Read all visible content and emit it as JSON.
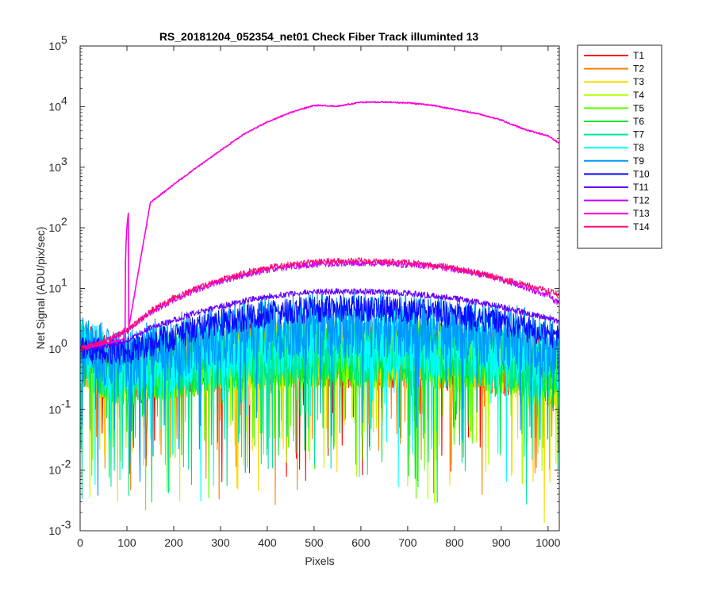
{
  "chart_data": {
    "type": "line",
    "title": "RS_20181204_052354_net01   Check Fiber     Track illuminted 13",
    "xlabel": "Pixels",
    "ylabel": "Net Signal (ADU/pix/sec)",
    "xlim": [
      0,
      1024
    ],
    "ylim": [
      0.001,
      100000
    ],
    "yscale": "log",
    "grid": false,
    "legend_position": "outside-right",
    "xticks": [
      0,
      100,
      200,
      300,
      400,
      500,
      600,
      700,
      800,
      900,
      1000
    ],
    "xtick_labels": [
      "0",
      "100",
      "200",
      "300",
      "400",
      "500",
      "600",
      "700",
      "800",
      "900",
      "1000"
    ],
    "yticks": [
      0.001,
      0.01,
      0.1,
      1,
      10,
      100,
      1000,
      10000,
      100000
    ],
    "ytick_base": "10",
    "ytick_exponents": [
      "-3",
      "-2",
      "-1",
      "0",
      "1",
      "2",
      "3",
      "4",
      "5"
    ],
    "x": [
      0,
      50,
      100,
      150,
      200,
      250,
      300,
      350,
      400,
      450,
      500,
      550,
      600,
      650,
      700,
      750,
      800,
      850,
      900,
      950,
      1000,
      1024
    ],
    "series": [
      {
        "name": "T1",
        "color": "#ff0000",
        "values": [
          0.9,
          0.5,
          0.4,
          0.5,
          0.5,
          0.6,
          0.7,
          0.7,
          0.8,
          0.8,
          0.8,
          0.8,
          0.8,
          0.8,
          0.8,
          0.8,
          0.7,
          0.7,
          0.6,
          0.5,
          0.4,
          0.3
        ]
      },
      {
        "name": "T2",
        "color": "#ff8000",
        "values": [
          0.9,
          0.5,
          0.4,
          0.5,
          0.5,
          0.6,
          0.7,
          0.7,
          0.8,
          0.8,
          0.8,
          0.8,
          0.8,
          0.8,
          0.8,
          0.8,
          0.7,
          0.7,
          0.6,
          0.5,
          0.4,
          0.3
        ]
      },
      {
        "name": "T3",
        "color": "#ffd700",
        "values": [
          0.9,
          0.5,
          0.4,
          0.5,
          0.5,
          0.6,
          0.7,
          0.7,
          0.8,
          0.8,
          0.8,
          0.8,
          0.8,
          0.8,
          0.8,
          0.8,
          0.7,
          0.7,
          0.6,
          0.5,
          0.4,
          0.3
        ]
      },
      {
        "name": "T4",
        "color": "#b4ff00",
        "values": [
          0.9,
          0.5,
          0.4,
          0.5,
          0.5,
          0.6,
          0.7,
          0.7,
          0.8,
          0.8,
          0.8,
          0.8,
          0.8,
          0.8,
          0.8,
          0.8,
          0.7,
          0.7,
          0.6,
          0.5,
          0.4,
          0.3
        ]
      },
      {
        "name": "T5",
        "color": "#5aff00",
        "values": [
          0.9,
          0.5,
          0.4,
          0.5,
          0.5,
          0.6,
          0.7,
          0.7,
          0.8,
          0.8,
          0.8,
          0.8,
          0.8,
          0.8,
          0.8,
          0.8,
          0.7,
          0.7,
          0.6,
          0.5,
          0.4,
          0.3
        ]
      },
      {
        "name": "T6",
        "color": "#00e632",
        "values": [
          0.9,
          0.5,
          0.4,
          0.5,
          0.5,
          0.6,
          0.7,
          0.7,
          0.8,
          0.8,
          0.8,
          0.8,
          0.8,
          0.8,
          0.8,
          0.8,
          0.7,
          0.7,
          0.6,
          0.5,
          0.4,
          0.3
        ]
      },
      {
        "name": "T7",
        "color": "#00e6a0",
        "values": [
          0.9,
          0.5,
          0.4,
          0.5,
          0.6,
          0.6,
          0.7,
          0.8,
          0.9,
          0.9,
          1.0,
          1.0,
          1.0,
          1.0,
          1.0,
          0.9,
          0.9,
          0.8,
          0.7,
          0.6,
          0.5,
          0.4
        ]
      },
      {
        "name": "T8",
        "color": "#00ffff",
        "values": [
          0.9,
          0.6,
          0.5,
          0.6,
          0.7,
          0.8,
          1.0,
          1.1,
          1.2,
          1.3,
          1.4,
          1.4,
          1.4,
          1.4,
          1.4,
          1.3,
          1.2,
          1.1,
          1.0,
          0.9,
          0.8,
          0.6
        ]
      },
      {
        "name": "T9",
        "color": "#0096ff",
        "values": [
          1.0,
          0.8,
          0.7,
          0.9,
          1.1,
          1.3,
          1.6,
          1.9,
          2.1,
          2.3,
          2.5,
          2.5,
          2.5,
          2.5,
          2.4,
          2.3,
          2.1,
          1.9,
          1.6,
          1.4,
          1.1,
          1.0
        ]
      },
      {
        "name": "T10",
        "color": "#0a0aff",
        "values": [
          1.0,
          0.9,
          0.9,
          1.2,
          1.6,
          2.1,
          2.7,
          3.2,
          3.8,
          4.2,
          4.5,
          4.6,
          4.6,
          4.5,
          4.3,
          4.0,
          3.6,
          3.2,
          2.7,
          2.2,
          1.7,
          1.5
        ]
      },
      {
        "name": "T11",
        "color": "#6400ff",
        "values": [
          1.0,
          1.1,
          1.4,
          2.2,
          3.0,
          4.0,
          5.0,
          6.2,
          7.3,
          8.1,
          8.7,
          8.9,
          8.9,
          8.7,
          8.3,
          7.6,
          6.8,
          5.9,
          4.9,
          4.0,
          3.2,
          2.8
        ]
      },
      {
        "name": "T12",
        "color": "#c800ff",
        "values": [
          1.0,
          1.3,
          2.0,
          4.0,
          6.5,
          9.5,
          13.0,
          16.5,
          20.0,
          22.5,
          24.5,
          25.5,
          26.0,
          25.5,
          24.5,
          23.0,
          20.5,
          17.5,
          14.0,
          10.5,
          7.5,
          5.5
        ]
      },
      {
        "name": "T13",
        "color": "#ff00dc",
        "values": [
          1.0,
          1.2,
          1.5,
          260,
          520,
          1000,
          1900,
          3500,
          5600,
          8000,
          10500,
          10200,
          11800,
          11900,
          11500,
          10600,
          9000,
          7600,
          6000,
          4200,
          3300,
          2500
        ]
      },
      {
        "name": "T14",
        "color": "#ff0a78",
        "values": [
          1.0,
          1.3,
          2.0,
          4.2,
          7.0,
          10.0,
          14.0,
          18.0,
          22.0,
          25.0,
          27.5,
          28.5,
          28.5,
          28.0,
          26.5,
          24.5,
          21.5,
          18.0,
          14.5,
          11.5,
          9.0,
          8.0
        ]
      }
    ]
  }
}
